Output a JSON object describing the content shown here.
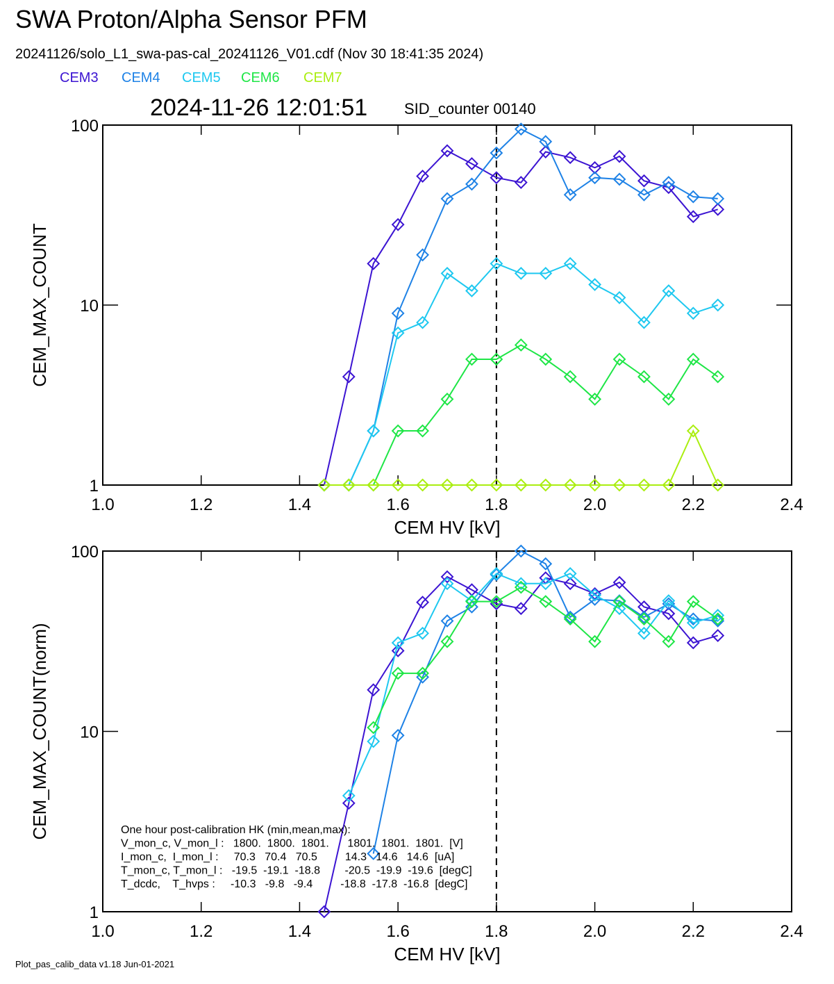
{
  "title": "SWA Proton/Alpha Sensor PFM",
  "subtitle": "20241126/solo_L1_swa-pas-cal_20241126_V01.cdf  (Nov 30 18:41:35 2024)",
  "footer": "Plot_pas_calib_data v1.18 Jun-01-2021",
  "chart_data": [
    {
      "type": "line",
      "timestamp": "2024-11-26 12:01:51",
      "counter_label": "SID_counter 00140",
      "x_label": "CEM HV [kV]",
      "y_label": "CEM_MAX_COUNT",
      "log_y": true,
      "marker": "diamond",
      "xlim": [
        1.0,
        2.4
      ],
      "xticks": [
        {
          "value": 1.0,
          "label": "1.0"
        },
        1.2,
        1.4,
        1.6,
        1.8,
        {
          "value": 2.0,
          "label": "2.0"
        },
        2.2,
        2.4
      ],
      "ylim": [
        1,
        100
      ],
      "yticks": [
        1,
        10,
        100
      ],
      "vline": 1.8,
      "x": [
        1.45,
        1.5,
        1.55,
        1.6,
        1.65,
        1.7,
        1.75,
        1.8,
        1.85,
        1.9,
        1.95,
        2.0,
        2.05,
        2.1,
        2.15,
        2.2,
        2.25
      ],
      "series": [
        {
          "name": "CEM3",
          "color": "#3c14d2",
          "values": [
            1,
            4,
            17,
            28,
            52,
            72,
            61,
            51,
            48,
            71,
            66,
            58,
            67,
            49,
            45,
            31,
            34
          ]
        },
        {
          "name": "CEM4",
          "color": "#1e82e6",
          "values": [
            1,
            1,
            2,
            9,
            19,
            39,
            47,
            70,
            95,
            81,
            41,
            51,
            50,
            41,
            48,
            40,
            39
          ]
        },
        {
          "name": "CEM5",
          "color": "#1ec8f0",
          "values": [
            1,
            1,
            2,
            7,
            8,
            15,
            12,
            17,
            15,
            15,
            17,
            13,
            11,
            8,
            12,
            9,
            10
          ]
        },
        {
          "name": "CEM6",
          "color": "#1ee646",
          "values": [
            1,
            1,
            1,
            2,
            2,
            3,
            5,
            5,
            6,
            5,
            4,
            3,
            5,
            4,
            3,
            5,
            4
          ]
        },
        {
          "name": "CEM7",
          "color": "#aaee10",
          "values": [
            1,
            1,
            1,
            1,
            1,
            1,
            1,
            1,
            1,
            1,
            1,
            1,
            1,
            1,
            1,
            2,
            1
          ]
        }
      ]
    },
    {
      "type": "line",
      "x_label": "CEM HV [kV]",
      "y_label": "CEM_MAX_COUNT(norm)",
      "log_y": true,
      "marker": "diamond",
      "xlim": [
        1.0,
        2.4
      ],
      "xticks": [
        {
          "value": 1.0,
          "label": "1.0"
        },
        1.2,
        1.4,
        1.6,
        1.8,
        {
          "value": 2.0,
          "label": "2.0"
        },
        2.2,
        2.4
      ],
      "ylim": [
        1,
        100
      ],
      "yticks": [
        1,
        10,
        100
      ],
      "vline": 1.8,
      "x": [
        1.45,
        1.5,
        1.55,
        1.6,
        1.65,
        1.7,
        1.75,
        1.8,
        1.85,
        1.9,
        1.95,
        2.0,
        2.05,
        2.1,
        2.15,
        2.2,
        2.25
      ],
      "series": [
        {
          "color": "#3c14d2",
          "values": [
            1,
            4,
            17,
            28,
            52,
            72,
            61,
            51,
            48,
            71,
            66,
            58,
            67,
            49,
            45,
            31,
            34
          ]
        },
        {
          "color": "#1e82e6",
          "values": [
            null,
            null,
            2.1,
            9.5,
            20,
            41,
            49,
            74,
            100,
            85,
            43,
            54,
            53,
            43,
            51,
            42,
            41
          ]
        },
        {
          "color": "#1ec8f0",
          "values": [
            null,
            4.4,
            8.8,
            31,
            35,
            66,
            53,
            75,
            66,
            66,
            75,
            57,
            48,
            35,
            53,
            40,
            44
          ]
        },
        {
          "color": "#1ee646",
          "values": [
            null,
            null,
            10.5,
            21,
            21,
            31.5,
            52.5,
            52.5,
            63,
            52.5,
            42,
            31.5,
            52.5,
            42,
            31.5,
            52.5,
            42
          ]
        }
      ],
      "annotations": [
        "One hour post-calibration HK (min,mean,max):",
        "V_mon_c, V_mon_l :   1800.  1800.  1801.      1801.  1801.  1801.  [V]",
        "I_mon_c,  I_mon_l :     70.3   70.4   70.5         14.3   14.6   14.6  [uA]",
        "T_mon_c, T_mon_l :   -19.5  -19.1  -18.8        -20.5  -19.9  -19.6  [degC]",
        "T_dcdc,    T_hvps :     -10.3   -9.8   -9.4         -18.8  -17.8  -16.8  [degC]"
      ]
    }
  ]
}
